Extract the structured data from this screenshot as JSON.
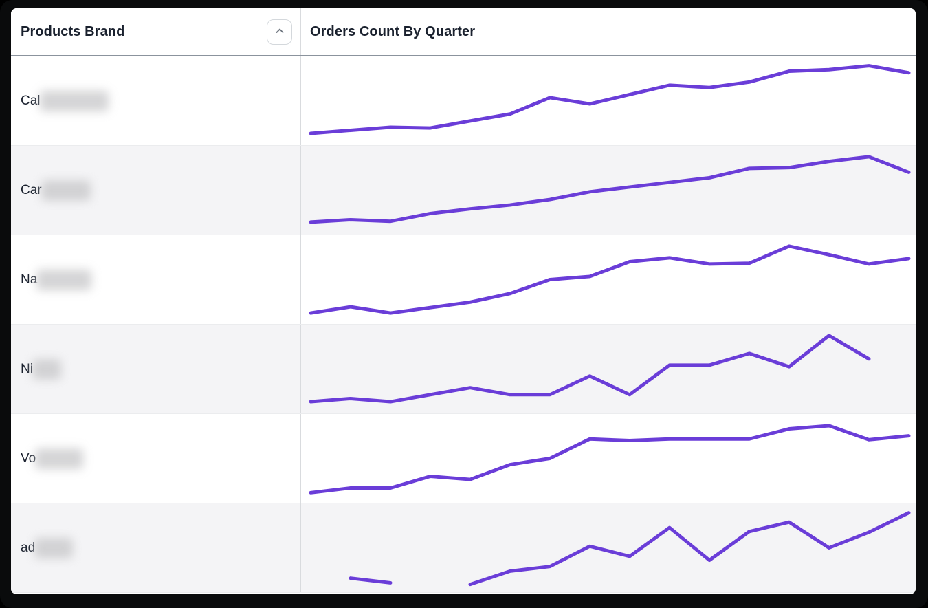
{
  "header": {
    "col1_label": "Products Brand",
    "col2_label": "Orders Count By Quarter",
    "sort_icon": "chevron-up-icon"
  },
  "colors": {
    "line": "#6a3dd8",
    "row_alt_bg": "#f4f4f6",
    "row_bg": "#ffffff",
    "header_text": "#1a212e",
    "frame": "#0a0b0c",
    "divider": "#d9dbde",
    "header_border": "#8b939d",
    "sort_chevron": "#6f7680"
  },
  "rows": [
    {
      "brand_prefix": "Cal",
      "brand_redacted": true,
      "redact_width": 100
    },
    {
      "brand_prefix": "Car",
      "brand_redacted": true,
      "redact_width": 72
    },
    {
      "brand_prefix": "Na",
      "brand_redacted": true,
      "redact_width": 80
    },
    {
      "brand_prefix": "Ni",
      "brand_redacted": true,
      "redact_width": 42
    },
    {
      "brand_prefix": "Vo",
      "brand_redacted": true,
      "redact_width": 70
    },
    {
      "brand_prefix": "ad",
      "brand_redacted": true,
      "redact_width": 56
    }
  ],
  "chart_data": [
    {
      "type": "line",
      "title": "Orders Count By Quarter — row Cal…",
      "x": [
        1,
        2,
        3,
        4,
        5,
        6,
        7,
        8,
        9,
        10,
        11,
        12,
        13,
        14,
        15,
        16
      ],
      "relative_values": [
        8,
        12,
        16,
        15,
        24,
        33,
        54,
        46,
        58,
        70,
        67,
        74,
        88,
        90,
        95,
        86
      ],
      "value_scale": "relative 0-100 (no axis labels shown)",
      "legend": "none",
      "grid": "off"
    },
    {
      "type": "line",
      "title": "Orders Count By Quarter — row Car…",
      "x": [
        1,
        2,
        3,
        4,
        5,
        6,
        7,
        8,
        9,
        10,
        11,
        12,
        13,
        14,
        15,
        16
      ],
      "relative_values": [
        9,
        12,
        10,
        20,
        26,
        31,
        38,
        48,
        54,
        60,
        66,
        78,
        79,
        87,
        93,
        73
      ],
      "value_scale": "relative 0-100 (no axis labels shown)",
      "legend": "none",
      "grid": "off"
    },
    {
      "type": "line",
      "title": "Orders Count By Quarter — row Na…",
      "x": [
        1,
        2,
        3,
        4,
        5,
        6,
        7,
        8,
        9,
        10,
        11,
        12,
        13,
        14,
        15,
        16
      ],
      "relative_values": [
        7,
        15,
        7,
        14,
        21,
        32,
        50,
        54,
        73,
        78,
        70,
        71,
        93,
        82,
        70,
        77
      ],
      "value_scale": "relative 0-100 (no axis labels shown)",
      "legend": "none",
      "grid": "off"
    },
    {
      "type": "line",
      "title": "Orders Count By Quarter — row Ni…",
      "x": [
        1,
        2,
        3,
        4,
        5,
        6,
        7,
        8,
        9,
        10,
        11,
        12,
        13,
        14,
        15,
        16
      ],
      "relative_values": [
        8,
        12,
        8,
        17,
        26,
        17,
        17,
        41,
        17,
        55,
        55,
        70,
        53,
        93,
        63,
        null
      ],
      "value_scale": "relative 0-100 (no axis labels shown)",
      "legend": "none",
      "grid": "off"
    },
    {
      "type": "line",
      "title": "Orders Count By Quarter — row Vo…",
      "x": [
        1,
        2,
        3,
        4,
        5,
        6,
        7,
        8,
        9,
        10,
        11,
        12,
        13,
        14,
        15,
        16
      ],
      "relative_values": [
        6,
        12,
        12,
        27,
        23,
        42,
        50,
        75,
        73,
        75,
        75,
        75,
        88,
        92,
        74,
        79
      ],
      "value_scale": "relative 0-100 (no axis labels shown)",
      "legend": "none",
      "grid": "off"
    },
    {
      "type": "line",
      "title": "Orders Count By Quarter — row ad…",
      "x": [
        1,
        2,
        3,
        4,
        5,
        6,
        7,
        8,
        9,
        10,
        11,
        12,
        13,
        14,
        15,
        16
      ],
      "relative_values": [
        null,
        11,
        5,
        null,
        3,
        20,
        26,
        52,
        39,
        76,
        34,
        71,
        83,
        50,
        70,
        95
      ],
      "value_scale": "relative 0-100 (no axis labels shown)",
      "legend": "none",
      "grid": "off"
    }
  ]
}
